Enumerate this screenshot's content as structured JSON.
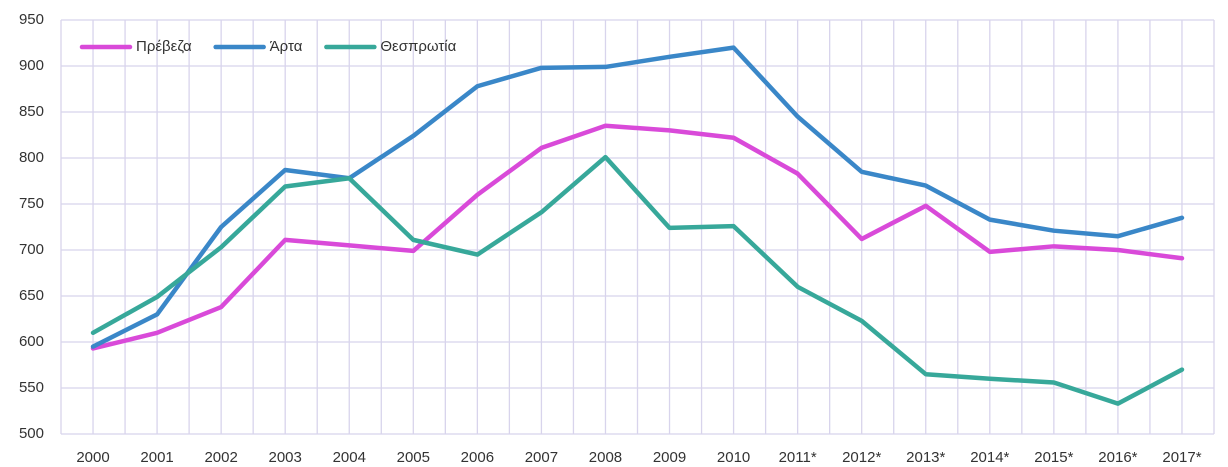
{
  "chart_data": {
    "type": "line",
    "categories": [
      "2000",
      "2001",
      "2002",
      "2003",
      "2004",
      "2005",
      "2006",
      "2007",
      "2008",
      "2009",
      "2010",
      "2011*",
      "2012*",
      "2013*",
      "2014*",
      "2015*",
      "2016*",
      "2017*"
    ],
    "series": [
      {
        "name": "Πρέβεζα",
        "color": "#d94ad9",
        "values": [
          593,
          610,
          638,
          711,
          705,
          699,
          760,
          811,
          835,
          830,
          822,
          783,
          712,
          748,
          698,
          704,
          700,
          691
        ]
      },
      {
        "name": "Άρτα",
        "color": "#3a87c8",
        "values": [
          595,
          630,
          725,
          787,
          778,
          824,
          878,
          898,
          899,
          910,
          920,
          845,
          785,
          770,
          733,
          721,
          715,
          735
        ]
      },
      {
        "name": "Θεσπρωτία",
        "color": "#37a89a",
        "values": [
          610,
          649,
          703,
          769,
          778,
          711,
          695,
          741,
          801,
          724,
          726,
          660,
          623,
          565,
          560,
          556,
          533,
          570
        ]
      }
    ],
    "ylim": [
      500,
      950
    ],
    "yticks": [
      500,
      550,
      600,
      650,
      700,
      750,
      800,
      850,
      900,
      950
    ],
    "grid": true,
    "legend": "upper left"
  }
}
